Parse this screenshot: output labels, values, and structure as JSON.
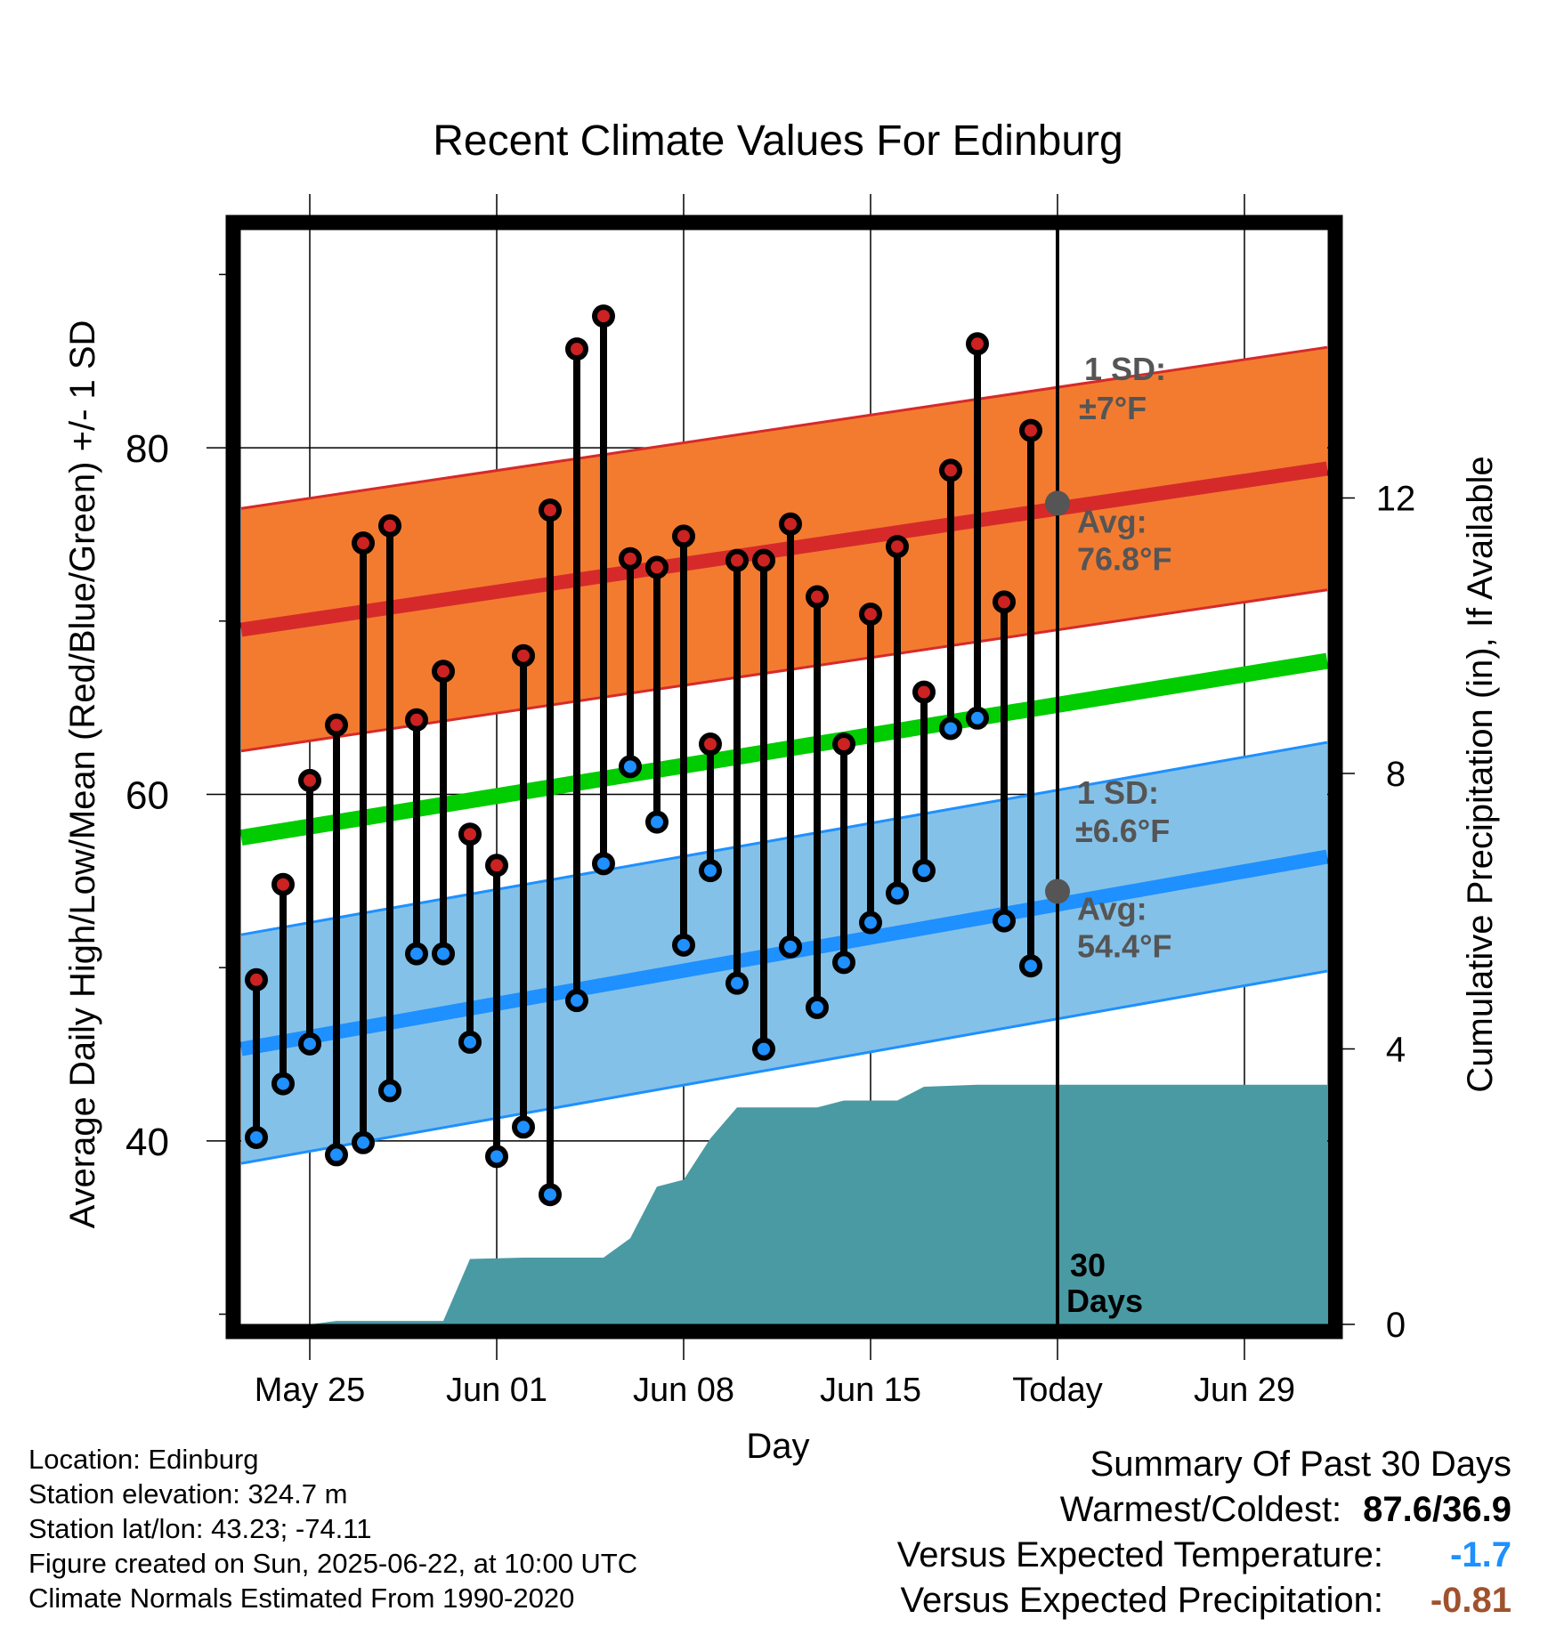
{
  "chart_data": {
    "type": "line",
    "title": "Recent Climate Values For Edinburg",
    "xlabel": "Day",
    "ylabel": "Average Daily High/Low/Mean (Red/Blue/Green) +/- 1 SD",
    "y2label": "Cumulative Precipitation (in), If Available",
    "ylim": [
      29,
      93
    ],
    "y2lim": [
      0,
      16
    ],
    "y_ticks": [
      40,
      60,
      80
    ],
    "y2_ticks": [
      0,
      4,
      8,
      12
    ],
    "x_day_range": [
      -4,
      40
    ],
    "x_ticks": [
      {
        "day": 0,
        "label": "May 25"
      },
      {
        "day": 7,
        "label": "Jun 01"
      },
      {
        "day": 14,
        "label": "Jun 08"
      },
      {
        "day": 21,
        "label": "Jun 15"
      },
      {
        "day": 28,
        "label": "Today"
      },
      {
        "day": 35,
        "label": "Jun 29"
      }
    ],
    "today_day": 28,
    "today_label": "30 Days",
    "grid": true,
    "normal_high": {
      "start": 69.5,
      "end": 78.8,
      "sd": 7
    },
    "normal_low": {
      "start": 45.3,
      "end": 56.4,
      "sd": 6.6
    },
    "normal_mean": {
      "start": 57.5,
      "end": 67.7
    },
    "annotations": {
      "high_sd": "1 SD:",
      "high_sd_value": "±7°F",
      "high_avg": "Avg:",
      "high_avg_value": "76.8°F",
      "low_sd": "1 SD:",
      "low_sd_value": "±6.6°F",
      "low_avg": "Avg:",
      "low_avg_value": "54.4°F"
    },
    "today_normal_high": 76.8,
    "today_normal_low": 54.4,
    "daily": [
      {
        "day": -2,
        "high": 49.3,
        "low": 40.2
      },
      {
        "day": -1,
        "high": 54.8,
        "low": 43.3
      },
      {
        "day": 0,
        "high": 60.8,
        "low": 45.6
      },
      {
        "day": 1,
        "high": 64.0,
        "low": 39.2
      },
      {
        "day": 2,
        "high": 74.5,
        "low": 39.9
      },
      {
        "day": 3,
        "high": 75.5,
        "low": 42.9
      },
      {
        "day": 4,
        "high": 64.3,
        "low": 50.8
      },
      {
        "day": 5,
        "high": 67.1,
        "low": 50.8
      },
      {
        "day": 6,
        "high": 57.7,
        "low": 45.7
      },
      {
        "day": 7,
        "high": 55.9,
        "low": 39.1
      },
      {
        "day": 8,
        "high": 68.0,
        "low": 40.8
      },
      {
        "day": 9,
        "high": 76.4,
        "low": 36.9
      },
      {
        "day": 10,
        "high": 85.7,
        "low": 48.1
      },
      {
        "day": 11,
        "high": 87.6,
        "low": 56.0
      },
      {
        "day": 12,
        "high": 73.6,
        "low": 61.6
      },
      {
        "day": 13,
        "high": 73.1,
        "low": 58.4
      },
      {
        "day": 14,
        "high": 74.9,
        "low": 51.3
      },
      {
        "day": 15,
        "high": 62.9,
        "low": 55.6
      },
      {
        "day": 16,
        "high": 73.5,
        "low": 49.1
      },
      {
        "day": 17,
        "high": 73.5,
        "low": 45.3
      },
      {
        "day": 18,
        "high": 75.6,
        "low": 51.2
      },
      {
        "day": 19,
        "high": 71.4,
        "low": 47.7
      },
      {
        "day": 20,
        "high": 62.9,
        "low": 50.3
      },
      {
        "day": 21,
        "high": 70.4,
        "low": 52.6
      },
      {
        "day": 22,
        "high": 74.3,
        "low": 54.3
      },
      {
        "day": 23,
        "high": 65.9,
        "low": 55.6
      },
      {
        "day": 24,
        "high": 78.7,
        "low": 63.8
      },
      {
        "day": 25,
        "high": 86.0,
        "low": 64.4
      },
      {
        "day": 26,
        "high": 71.1,
        "low": 52.7
      },
      {
        "day": 27,
        "high": 81.0,
        "low": 50.1
      }
    ],
    "precip_cumulative": [
      {
        "day": -4,
        "value": 0
      },
      {
        "day": 0,
        "value": 0
      },
      {
        "day": 1,
        "value": 0.05
      },
      {
        "day": 5,
        "value": 0.05
      },
      {
        "day": 6,
        "value": 0.95
      },
      {
        "day": 8,
        "value": 0.97
      },
      {
        "day": 11,
        "value": 0.97
      },
      {
        "day": 12,
        "value": 1.25
      },
      {
        "day": 13,
        "value": 2.0
      },
      {
        "day": 14,
        "value": 2.1
      },
      {
        "day": 15,
        "value": 2.7
      },
      {
        "day": 16,
        "value": 3.15
      },
      {
        "day": 19,
        "value": 3.15
      },
      {
        "day": 20,
        "value": 3.25
      },
      {
        "day": 22,
        "value": 3.25
      },
      {
        "day": 23,
        "value": 3.45
      },
      {
        "day": 25,
        "value": 3.48
      },
      {
        "day": 40,
        "value": 3.48
      }
    ]
  },
  "info": {
    "location": "Location: Edinburg",
    "elevation": "Station elevation: 324.7 m",
    "latlon": "Station lat/lon: 43.23; -74.11",
    "created": "Figure created on Sun, 2025-06-22, at 10:00 UTC",
    "normals": "Climate Normals Estimated From 1990-2020"
  },
  "summary": {
    "title": "Summary Of Past 30 Days",
    "warm_cold_label": "Warmest/Coldest:",
    "warm_cold_value": "87.6/36.9",
    "temp_label": "Versus Expected Temperature:",
    "temp_value": "-1.7",
    "precip_label": "Versus Expected Precipitation:",
    "precip_value": "-0.81"
  },
  "colors": {
    "high_band": "#f37b30",
    "high_line": "#d62a2a",
    "low_band": "#84c1e8",
    "low_line": "#1e90ff",
    "mean_line": "#00cc00",
    "precip_fill": "#4a9aa3",
    "high_dot": "#cc2222",
    "low_dot": "#1e90ff",
    "annotation_text": "#555555",
    "temp_value": "#1e90ff",
    "precip_value": "#a0522d"
  }
}
